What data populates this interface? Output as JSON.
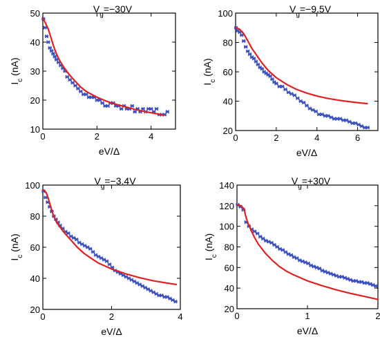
{
  "chart_data": [
    {
      "type": "scatter",
      "title": "V_g=−30V",
      "xlabel": "eV/Δ",
      "ylabel": "I_c (nA)",
      "xlim": [
        0,
        4.9
      ],
      "ylim": [
        10,
        50
      ],
      "xticks": [
        0,
        2,
        4
      ],
      "yticks": [
        10,
        20,
        30,
        40,
        50
      ],
      "series": [
        {
          "kind": "markers",
          "color": "#3a4fc0",
          "x": [
            0.02,
            0.08,
            0.14,
            0.2,
            0.26,
            0.32,
            0.38,
            0.44,
            0.5,
            0.58,
            0.66,
            0.74,
            0.82,
            0.9,
            1.0,
            1.1,
            1.2,
            1.3,
            1.4,
            1.5,
            1.6,
            1.7,
            1.8,
            1.9,
            2.0,
            2.1,
            2.2,
            2.3,
            2.4,
            2.5,
            2.6,
            2.7,
            2.8,
            2.9,
            3.0,
            3.1,
            3.2,
            3.3,
            3.4,
            3.5,
            3.6,
            3.7,
            3.8,
            3.9,
            4.0,
            4.1,
            4.2,
            4.3,
            4.4,
            4.5,
            4.6
          ],
          "y": [
            48,
            45,
            42,
            40,
            38,
            37,
            36,
            35,
            34,
            33,
            32,
            31,
            30,
            28,
            27,
            26,
            25,
            24,
            23,
            22,
            22,
            21,
            21,
            21,
            20,
            20,
            19,
            18,
            18,
            19,
            19,
            18,
            18,
            17,
            18,
            17,
            17,
            18,
            16,
            17,
            16,
            17,
            16,
            17,
            17,
            16,
            17,
            15,
            15,
            15,
            16
          ]
        },
        {
          "kind": "line",
          "color": "#e02020",
          "x": [
            0,
            0.1,
            0.2,
            0.3,
            0.4,
            0.5,
            0.6,
            0.8,
            1.0,
            1.2,
            1.4,
            1.6,
            1.8,
            2.0,
            2.3,
            2.6,
            3.0,
            3.4,
            3.8,
            4.2,
            4.5
          ],
          "y": [
            48.5,
            46.5,
            44.5,
            41.5,
            38.5,
            36,
            34,
            31,
            28.5,
            26.5,
            24.5,
            23,
            22,
            21,
            19.8,
            18.8,
            17.8,
            16.8,
            16,
            15.3,
            14.8
          ]
        }
      ]
    },
    {
      "type": "scatter",
      "title": "V_g=−9.5V",
      "xlabel": "eV/Δ",
      "ylabel": "I_c (nA)",
      "xlim": [
        0,
        7
      ],
      "ylim": [
        20,
        100
      ],
      "xticks": [
        0,
        2,
        4,
        6
      ],
      "yticks": [
        20,
        40,
        60,
        80,
        100
      ],
      "series": [
        {
          "kind": "markers",
          "color": "#3a4fc0",
          "x": [
            0.02,
            0.1,
            0.2,
            0.3,
            0.4,
            0.5,
            0.6,
            0.7,
            0.8,
            0.9,
            1.0,
            1.1,
            1.2,
            1.3,
            1.4,
            1.5,
            1.6,
            1.7,
            1.8,
            1.9,
            2.0,
            2.15,
            2.3,
            2.45,
            2.6,
            2.75,
            2.9,
            3.05,
            3.2,
            3.35,
            3.5,
            3.65,
            3.8,
            3.95,
            4.1,
            4.25,
            4.4,
            4.55,
            4.7,
            4.85,
            5.0,
            5.15,
            5.3,
            5.45,
            5.6,
            5.75,
            5.9,
            6.05,
            6.2,
            6.35,
            6.5
          ],
          "y": [
            90,
            88,
            87,
            85,
            81,
            77,
            74,
            72,
            70,
            69,
            67,
            65,
            63,
            62,
            60,
            59,
            58,
            57,
            55,
            53,
            52,
            50,
            50,
            48,
            46,
            45,
            44,
            42,
            40,
            39,
            37,
            35,
            34,
            33,
            31,
            31,
            30,
            30,
            29,
            28,
            28,
            28,
            27,
            27,
            26,
            25,
            25,
            24,
            23,
            22,
            22
          ]
        },
        {
          "kind": "line",
          "color": "#e02020",
          "x": [
            0,
            0.2,
            0.4,
            0.6,
            0.8,
            1.0,
            1.3,
            1.6,
            2.0,
            2.5,
            3.0,
            3.5,
            4.0,
            4.5,
            5.0,
            5.5,
            6.0,
            6.5
          ],
          "y": [
            90,
            89,
            86,
            81,
            76,
            72,
            66,
            61,
            56,
            51.5,
            48,
            45.5,
            43.5,
            42,
            40.8,
            39.8,
            39,
            38.3
          ]
        }
      ]
    },
    {
      "type": "scatter",
      "title": "V_g=−3.4V",
      "xlabel": "eV/Δ",
      "ylabel": "I_c (nA)",
      "xlim": [
        0,
        4
      ],
      "ylim": [
        20,
        100
      ],
      "xticks": [
        0,
        2,
        4
      ],
      "yticks": [
        20,
        40,
        60,
        80,
        100
      ],
      "series": [
        {
          "kind": "markers",
          "color": "#3a4fc0",
          "x": [
            0.02,
            0.08,
            0.14,
            0.2,
            0.26,
            0.32,
            0.38,
            0.44,
            0.5,
            0.58,
            0.66,
            0.74,
            0.82,
            0.9,
            0.98,
            1.06,
            1.14,
            1.22,
            1.3,
            1.38,
            1.46,
            1.54,
            1.62,
            1.7,
            1.78,
            1.86,
            1.94,
            2.02,
            2.1,
            2.18,
            2.26,
            2.34,
            2.42,
            2.5,
            2.58,
            2.66,
            2.74,
            2.82,
            2.9,
            2.98,
            3.06,
            3.14,
            3.22,
            3.3,
            3.38,
            3.46,
            3.54,
            3.62,
            3.7,
            3.78,
            3.86
          ],
          "y": [
            96,
            92,
            89,
            86,
            83,
            80,
            78,
            76,
            74,
            72,
            70,
            69,
            67,
            66,
            65,
            63,
            62,
            61,
            60,
            59,
            57,
            55,
            54,
            53,
            52,
            51,
            49,
            47,
            45,
            44,
            43,
            42,
            41,
            40,
            39,
            38,
            37,
            36,
            35,
            34,
            33,
            32,
            31,
            30,
            29,
            29,
            28,
            28,
            27,
            26,
            25
          ]
        },
        {
          "kind": "line",
          "color": "#e02020",
          "x": [
            0,
            0.05,
            0.1,
            0.15,
            0.2,
            0.3,
            0.4,
            0.6,
            0.8,
            1.0,
            1.2,
            1.4,
            1.6,
            1.8,
            2.0,
            2.4,
            2.8,
            3.2,
            3.6,
            3.9
          ],
          "y": [
            97,
            96.5,
            95,
            92,
            88,
            81,
            76,
            70,
            65,
            60,
            56,
            53,
            50,
            48,
            46,
            43,
            40.5,
            38.5,
            37,
            36
          ]
        }
      ]
    },
    {
      "type": "scatter",
      "title": "V_g=+30V",
      "xlabel": "eV/Δ",
      "ylabel": "I_c (nA)",
      "xlim": [
        0,
        2
      ],
      "ylim": [
        20,
        140
      ],
      "xticks": [
        0,
        1,
        2
      ],
      "yticks": [
        20,
        40,
        60,
        80,
        100,
        120,
        140
      ],
      "series": [
        {
          "kind": "markers",
          "color": "#3a4fc0",
          "x": [
            0.01,
            0.05,
            0.09,
            0.13,
            0.17,
            0.21,
            0.25,
            0.29,
            0.33,
            0.37,
            0.41,
            0.45,
            0.49,
            0.53,
            0.57,
            0.61,
            0.65,
            0.69,
            0.73,
            0.77,
            0.81,
            0.85,
            0.89,
            0.93,
            0.97,
            1.01,
            1.05,
            1.09,
            1.13,
            1.17,
            1.21,
            1.25,
            1.29,
            1.33,
            1.37,
            1.41,
            1.45,
            1.49,
            1.53,
            1.57,
            1.61,
            1.65,
            1.69,
            1.73,
            1.77,
            1.81,
            1.85,
            1.89,
            1.93,
            1.97
          ],
          "y": [
            121,
            119,
            116,
            104,
            100,
            97,
            95,
            93,
            90,
            88,
            86,
            85,
            84,
            82,
            80,
            78,
            77,
            75,
            73,
            72,
            70,
            69,
            67,
            66,
            65,
            64,
            62,
            61,
            60,
            59,
            57,
            56,
            55,
            54,
            53,
            52,
            51,
            51,
            50,
            49,
            48,
            47,
            47,
            46,
            46,
            45,
            45,
            44,
            43,
            42
          ]
        },
        {
          "kind": "line",
          "color": "#e02020",
          "x": [
            0,
            0.05,
            0.1,
            0.12,
            0.15,
            0.2,
            0.25,
            0.3,
            0.4,
            0.5,
            0.6,
            0.7,
            0.8,
            1.0,
            1.2,
            1.4,
            1.6,
            1.8,
            2.0
          ],
          "y": [
            121,
            120,
            117,
            111,
            104,
            96,
            89,
            83,
            74,
            67,
            61,
            56.5,
            53,
            47,
            42.5,
            38.5,
            35,
            32,
            29
          ]
        }
      ]
    }
  ]
}
